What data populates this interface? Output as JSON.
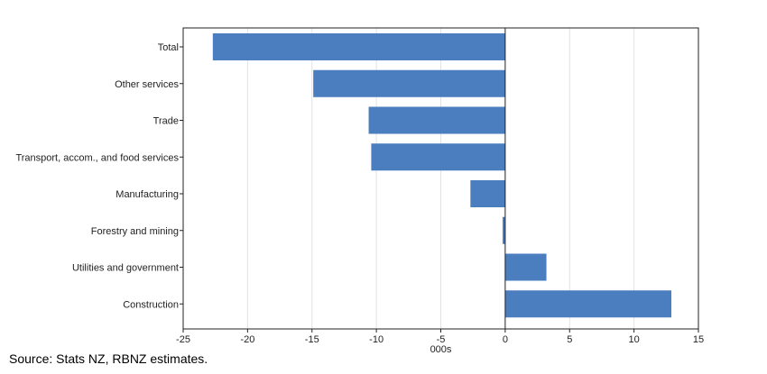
{
  "chart_data": {
    "type": "bar",
    "orientation": "horizontal",
    "categories": [
      "Total",
      "Other services",
      "Trade",
      "Transport, accom., and food services",
      "Manufacturing",
      "Forestry and mining",
      "Utilities and government",
      "Construction"
    ],
    "values": [
      -22.7,
      -14.9,
      -10.6,
      -10.4,
      -2.7,
      -0.2,
      3.2,
      12.9
    ],
    "title": "",
    "xlabel": "000s",
    "ylabel": "",
    "xlim": [
      -25,
      15
    ],
    "xticks": [
      "-25",
      "-20",
      "-15",
      "-10",
      "-5",
      "0",
      "5",
      "10",
      "15"
    ],
    "grid": true,
    "legend": "none",
    "bar_color": "#4a7ebf",
    "grid_color": "#e2e2e2",
    "axis_color": "#222222"
  },
  "footer": {
    "source": "Source: Stats NZ, RBNZ estimates."
  }
}
